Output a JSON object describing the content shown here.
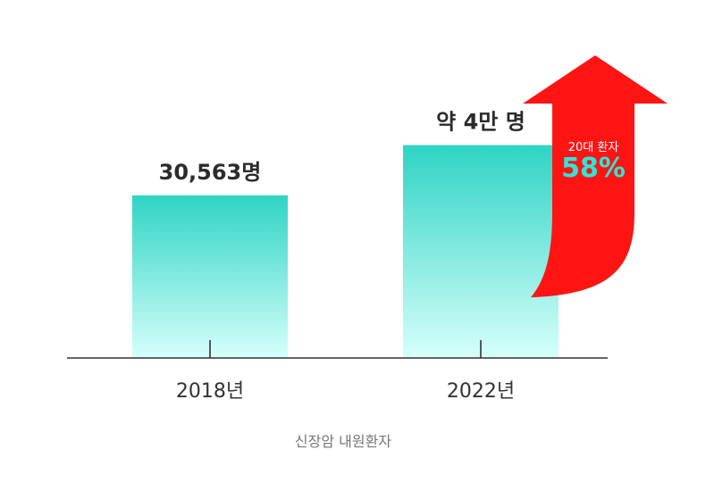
{
  "chart_data": {
    "type": "bar",
    "categories": [
      "2018년",
      "2022년"
    ],
    "values": [
      30563,
      40000
    ],
    "value_labels": [
      "30,563명",
      "약 4만 명"
    ],
    "xlabel": "신장암 내원환자",
    "ylim": [
      0,
      52000
    ],
    "annotation": {
      "subtitle": "20대 환자",
      "value": "58%"
    }
  },
  "colors": {
    "bar_top": "#2fd4c4",
    "bar_bottom": "#d6fffb",
    "arrow": "#ff1414",
    "annotation_value": "#2ee6d6",
    "axis": "#333333"
  }
}
